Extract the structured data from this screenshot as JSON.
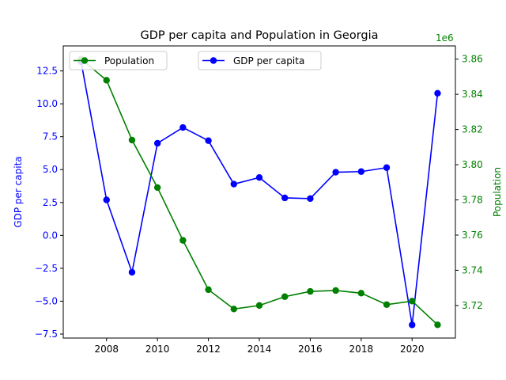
{
  "chart_data": {
    "type": "line",
    "title": "GDP per capita and Population in Georgia",
    "x": [
      2007,
      2008,
      2009,
      2010,
      2011,
      2012,
      2013,
      2014,
      2015,
      2016,
      2017,
      2018,
      2019,
      2020,
      2021
    ],
    "xlim": [
      2006.3,
      2021.7
    ],
    "xticks": [
      "2008",
      "2010",
      "2012",
      "2014",
      "2016",
      "2018",
      "2020"
    ],
    "grid": false,
    "series": [
      {
        "name": "GDP per capita",
        "axis": "left",
        "color": "#0000ff",
        "values": [
          13.2,
          2.7,
          -2.8,
          7.0,
          8.2,
          7.2,
          3.9,
          4.4,
          2.85,
          2.8,
          4.8,
          4.85,
          5.15,
          -6.8,
          10.8
        ]
      },
      {
        "name": "Population",
        "axis": "right",
        "color": "#008000",
        "values": [
          3860000,
          3848000,
          3814000,
          3787000,
          3757000,
          3729000,
          3718000,
          3720000,
          3725000,
          3728000,
          3728500,
          3727000,
          3720500,
          3722500,
          3709000
        ]
      }
    ],
    "y_left": {
      "label": "GDP per capita",
      "lim": [
        -7.8,
        14.4
      ],
      "ticks": [
        "−7.5",
        "−5.0",
        "−2.5",
        "0.0",
        "2.5",
        "5.0",
        "7.5",
        "10.0",
        "12.5"
      ],
      "tick_values": [
        -7.5,
        -5.0,
        -2.5,
        0.0,
        2.5,
        5.0,
        7.5,
        10.0,
        12.5
      ],
      "color": "#0000ff"
    },
    "y_right": {
      "label": "Population",
      "offset_text": "1e6",
      "lim": [
        3701500,
        3867500
      ],
      "ticks": [
        "3.72",
        "3.74",
        "3.76",
        "3.78",
        "3.80",
        "3.82",
        "3.84",
        "3.86"
      ],
      "tick_values": [
        3720000,
        3740000,
        3760000,
        3780000,
        3800000,
        3820000,
        3840000,
        3860000
      ],
      "color": "#008000"
    },
    "legends": [
      {
        "series": "Population",
        "placement": "upper-left"
      },
      {
        "series": "GDP per capita",
        "placement": "upper-center"
      }
    ]
  }
}
